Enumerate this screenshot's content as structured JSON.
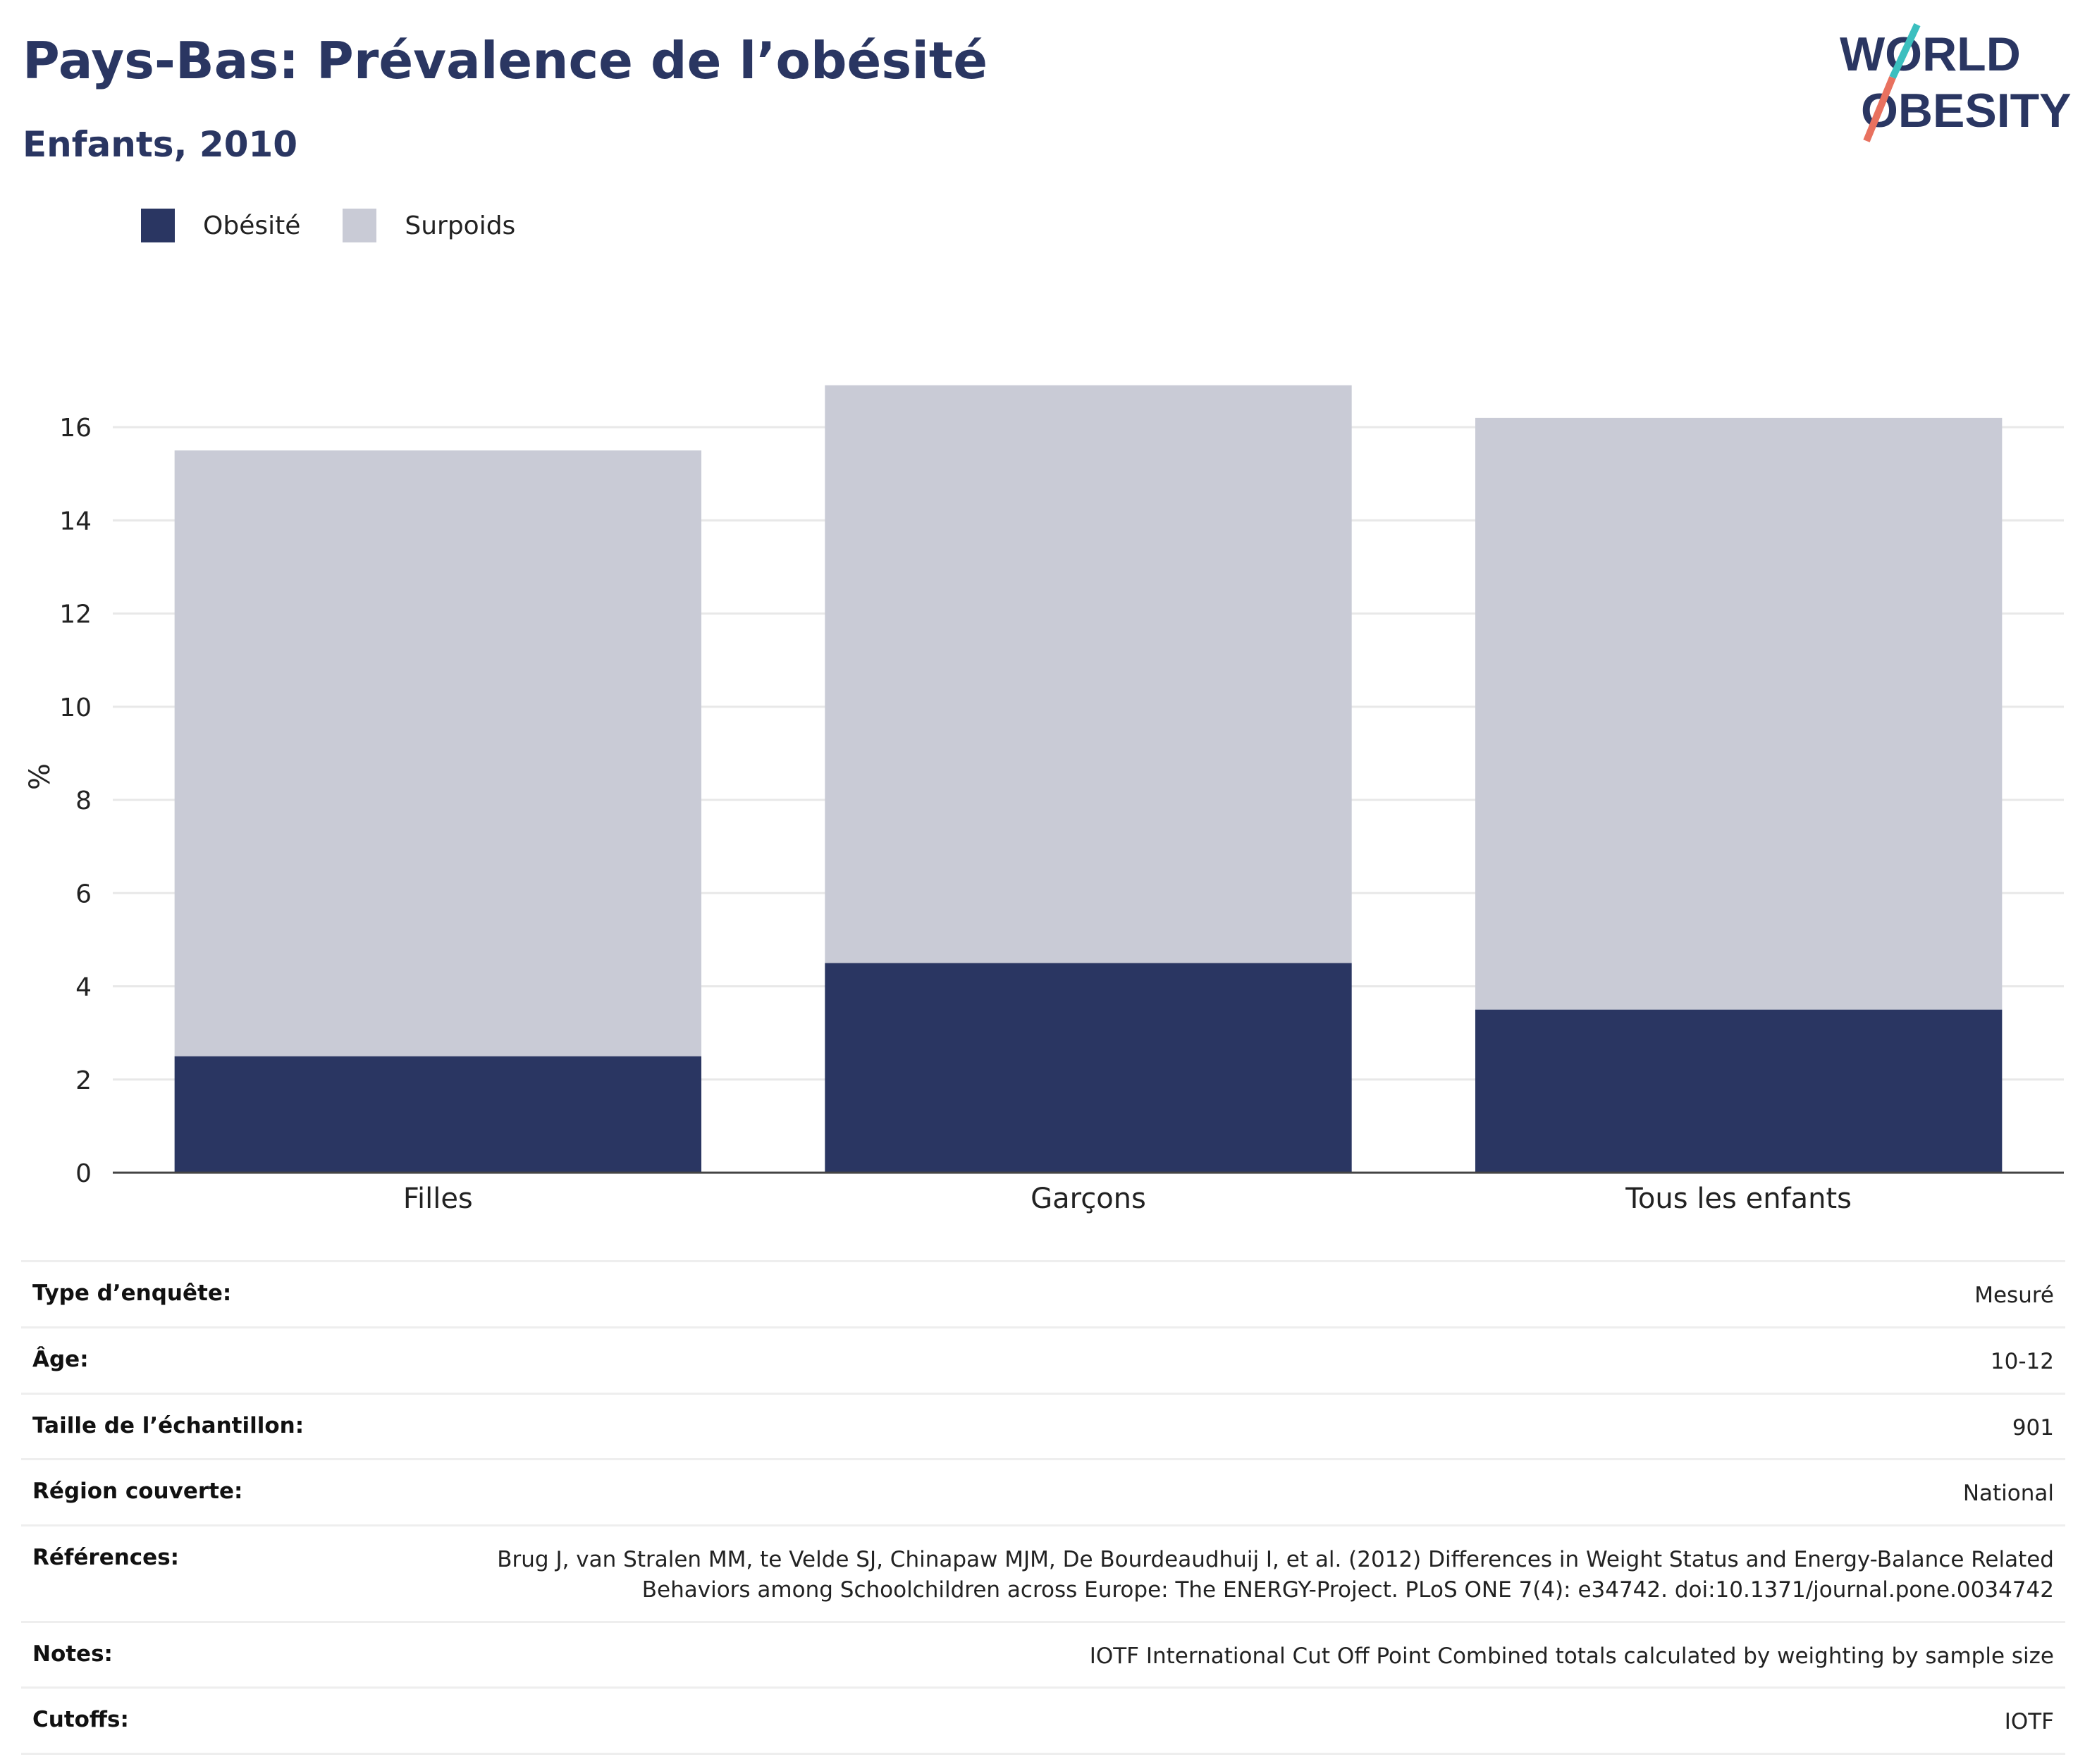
{
  "header": {
    "title": "Pays-Bas: Prévalence de l’obésité",
    "subtitle": "Enfants, 2010"
  },
  "logo": {
    "line1": "WORLD",
    "line2": "OBESITY"
  },
  "colors": {
    "obesity": "#2a3662",
    "overweight": "#c9cbd6",
    "title": "#2a3662",
    "logo_teal": "#3bbfbf",
    "logo_coral": "#e8715f"
  },
  "chart_data": {
    "type": "bar",
    "stacked": true,
    "categories": [
      "Filles",
      "Garçons",
      "Tous les enfants"
    ],
    "series": [
      {
        "name": "Obésité",
        "values": [
          2.5,
          4.5,
          3.5
        ],
        "color": "#2a3662"
      },
      {
        "name": "Surpoids",
        "values": [
          13.0,
          12.4,
          12.7
        ],
        "color": "#c9cbd6"
      }
    ],
    "ylabel": "%",
    "ylim": [
      0,
      17
    ],
    "yticks": [
      0,
      2,
      4,
      6,
      8,
      10,
      12,
      14,
      16
    ],
    "grid": true,
    "legend": "top-left"
  },
  "meta": [
    {
      "label": "Type d’enquête:",
      "value": "Mesuré"
    },
    {
      "label": "Âge:",
      "value": "10-12"
    },
    {
      "label": "Taille de l’échantillon:",
      "value": "901"
    },
    {
      "label": "Région couverte:",
      "value": "National"
    },
    {
      "label": "Références:",
      "value": "Brug J, van Stralen MM, te Velde SJ, Chinapaw MJM, De Bourdeaudhuij I, et al. (2012) Differences in Weight Status and Energy-Balance Related Behaviors among Schoolchildren across Europe: The ENERGY-Project. PLoS ONE 7(4): e34742. doi:10.1371/journal.pone.0034742"
    },
    {
      "label": "Notes:",
      "value": "IOTF International Cut Off Point Combined totals calculated by weighting by sample size"
    },
    {
      "label": "Cutoffs:",
      "value": "IOTF"
    }
  ]
}
